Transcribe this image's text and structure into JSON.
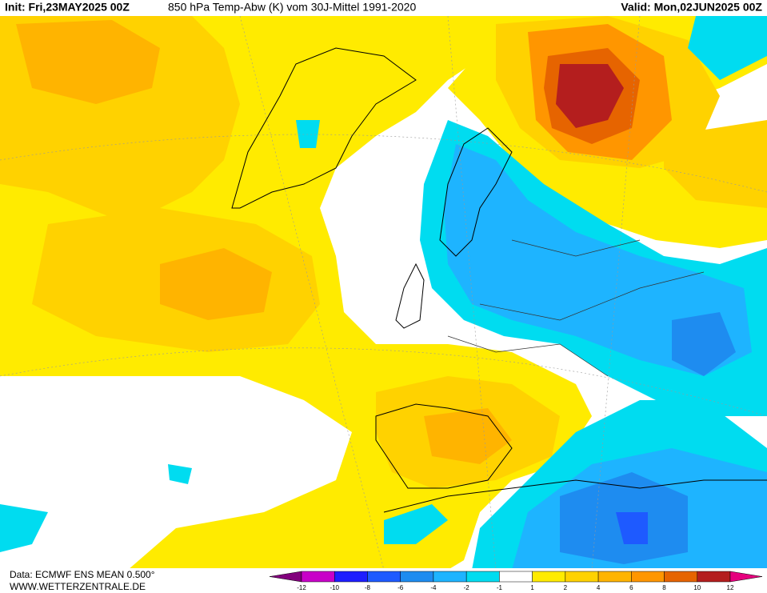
{
  "header": {
    "init": "Init: Fri,23MAY2025 00Z",
    "title": "850 hPa Temp-Abw (K) vom 30J-Mittel 1991-2020",
    "valid": "Valid: Mon,02JUN2025 00Z"
  },
  "footer": {
    "source": "Data: ECMWF ENS MEAN 0.500°",
    "site": "WWW.WETTERZENTRALE.DE"
  },
  "colorbar": {
    "ticks": [
      -12,
      -10,
      -8,
      -6,
      -4,
      -2,
      -1,
      1,
      2,
      4,
      6,
      8,
      10,
      12
    ],
    "colors": [
      "#82007d",
      "#c800c8",
      "#1e1eff",
      "#1e5aff",
      "#1e8cf0",
      "#1eb4ff",
      "#00dcf0",
      "#ffffff",
      "#ffeb00",
      "#ffd200",
      "#ffb400",
      "#ff9600",
      "#e66400",
      "#b41e1e",
      "#e6007e"
    ]
  }
}
